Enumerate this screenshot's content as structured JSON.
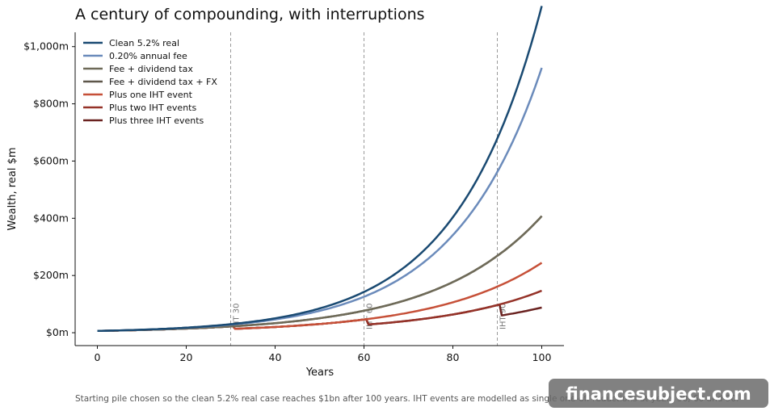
{
  "chart_data": {
    "type": "line",
    "title": "A century of compounding, with interruptions",
    "xlabel": "Years",
    "ylabel": "Wealth, real $m",
    "xlim": [
      -5,
      105
    ],
    "ylim": [
      -45,
      1050
    ],
    "x_ticks": [
      0,
      20,
      40,
      60,
      80,
      100
    ],
    "y_ticks": [
      0,
      200,
      400,
      600,
      800,
      1000
    ],
    "y_tick_labels": [
      "$0m",
      "$200m",
      "$400m",
      "$600m",
      "$800m",
      "$1,000m"
    ],
    "legend_position": "top-left",
    "grid": false,
    "series": [
      {
        "name": "Clean 5.2% real",
        "color": "#1a4a72",
        "start": 6.3,
        "rate": 0.052,
        "events": []
      },
      {
        "name": "0.20% annual fee",
        "color": "#6b8bbb",
        "start": 6.3,
        "rate": 0.0499,
        "events": []
      },
      {
        "name": "Fee + dividend tax",
        "color": "#6e6a58",
        "start": 6.3,
        "rate": 0.0417,
        "events": []
      },
      {
        "name": "Fee + dividend tax + FX",
        "color": "#5e574a",
        "start": 6.3,
        "rate": 0.0417,
        "events": []
      },
      {
        "name": "Plus one IHT event",
        "color": "#c65038",
        "start": 6.3,
        "rate": 0.0417,
        "events": [
          30
        ]
      },
      {
        "name": "Plus two IHT events",
        "color": "#953228",
        "start": 6.3,
        "rate": 0.0417,
        "events": [
          30,
          60
        ]
      },
      {
        "name": "Plus three IHT events",
        "color": "#6a2220",
        "start": 6.3,
        "rate": 0.0417,
        "events": [
          30,
          60,
          90
        ]
      }
    ],
    "event_fraction_kept": 0.6,
    "annotations": [
      {
        "x": 30,
        "label": "IHT 30"
      },
      {
        "x": 60,
        "label": "IHT 60"
      },
      {
        "x": 90,
        "label": "IHT 90"
      }
    ]
  },
  "footnote": "Starting pile chosen so the clean 5.2% real case reaches $1bn after 100 years. IHT events are modelled as single one-off reductions at years 30, 60 and 90.",
  "watermark": "financesubject.com"
}
